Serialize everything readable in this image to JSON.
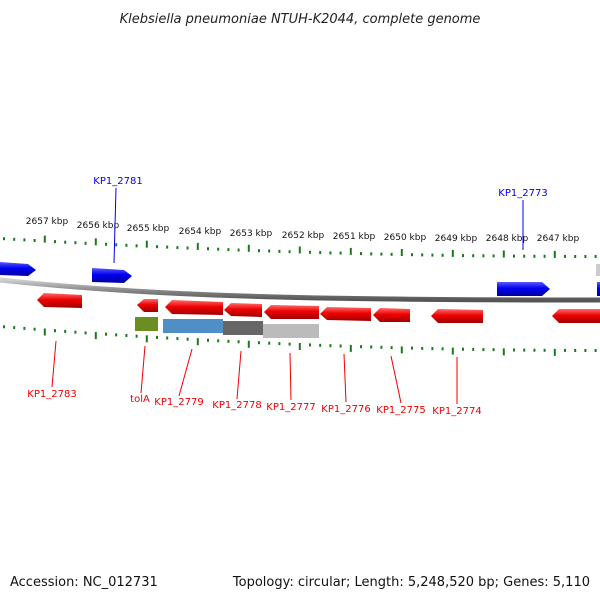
{
  "title": "Klebsiella pneumoniae NTUH-K2044, complete genome",
  "footer": {
    "accession": "Accession: NC_012731",
    "summary": "Topology: circular; Length: 5,248,520 bp; Genes: 5,110"
  },
  "colors": {
    "forward_gene": "#0000ee",
    "reverse_gene": "#ee0000",
    "tick": "#1a7a1a",
    "backbone": "#888888",
    "tola_block": "#6b8e23",
    "blue_block": "#4f8fc6",
    "dark_block": "#666666",
    "light_block": "#bbbbbb"
  },
  "scale_labels": [
    "2657 kbp",
    "2656 kbp",
    "2655 kbp",
    "2654 kbp",
    "2653 kbp",
    "2652 kbp",
    "2651 kbp",
    "2650 kbp",
    "2649 kbp",
    "2648 kbp",
    "2647 kbp"
  ],
  "forward_labels": [
    "KP1_2781",
    "KP1_2773"
  ],
  "reverse_labels": [
    "KP1_2783",
    "tolA",
    "KP1_2779",
    "KP1_2778",
    "KP1_2777",
    "KP1_2776",
    "KP1_2775",
    "KP1_2774"
  ]
}
